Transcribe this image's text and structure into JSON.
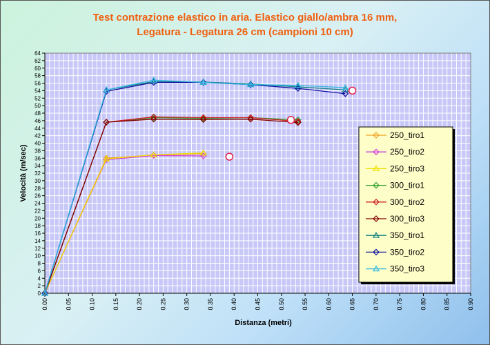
{
  "chart_data": {
    "type": "line",
    "title_line1": "Test contrazione elastico in aria. Elastico giallo/ambra 16 mm,",
    "title_line2": "Legatura - Legatura 26 cm (campioni 10 cm)",
    "xlabel": "Distanza (metri)",
    "ylabel": "Velocità (m/sec)",
    "xlim": [
      0,
      0.9
    ],
    "ylim": [
      0,
      64
    ],
    "x_ticks": [
      "0.00",
      "0.05",
      "0.10",
      "0.15",
      "0.20",
      "0.25",
      "0.30",
      "0.35",
      "0.40",
      "0.45",
      "0.50",
      "0.55",
      "0.60",
      "0.65",
      "0.70",
      "0.75",
      "0.80",
      "0.85",
      "0.90"
    ],
    "y_ticks": [
      0,
      2,
      4,
      6,
      8,
      10,
      12,
      14,
      16,
      18,
      20,
      22,
      24,
      26,
      28,
      30,
      32,
      34,
      36,
      38,
      40,
      42,
      44,
      46,
      48,
      50,
      52,
      54,
      56,
      58,
      60,
      62,
      64
    ],
    "grid": true,
    "legend_position": "right",
    "series": [
      {
        "name": "250_tiro1",
        "color": "#f0a020",
        "marker": "diamond",
        "x": [
          0,
          0.13,
          0.23,
          0.335
        ],
        "y": [
          0,
          36.0,
          36.8,
          37.2
        ]
      },
      {
        "name": "250_tiro2",
        "color": "#d040e0",
        "marker": "diamond",
        "x": [
          0,
          0.13,
          0.23,
          0.335
        ],
        "y": [
          0,
          35.6,
          36.7,
          36.6
        ]
      },
      {
        "name": "250_tiro3",
        "color": "#f0e000",
        "marker": "triangle",
        "x": [
          0,
          0.13,
          0.23,
          0.335
        ],
        "y": [
          0,
          35.8,
          36.9,
          37.4
        ]
      },
      {
        "name": "300_tiro1",
        "color": "#30a030",
        "marker": "diamond",
        "x": [
          0,
          0.13,
          0.23,
          0.335,
          0.435,
          0.535
        ],
        "y": [
          0,
          45.6,
          46.8,
          46.6,
          46.8,
          46.2
        ]
      },
      {
        "name": "300_tiro2",
        "color": "#d02020",
        "marker": "diamond",
        "x": [
          0,
          0.13,
          0.23,
          0.335,
          0.435,
          0.535
        ],
        "y": [
          0,
          45.6,
          47.0,
          46.8,
          46.8,
          45.8
        ]
      },
      {
        "name": "300_tiro3",
        "color": "#800000",
        "marker": "diamond",
        "x": [
          0,
          0.13,
          0.23,
          0.335,
          0.435,
          0.535
        ],
        "y": [
          0,
          45.6,
          46.4,
          46.3,
          46.4,
          45.5
        ]
      },
      {
        "name": "350_tiro1",
        "color": "#108080",
        "marker": "triangle",
        "x": [
          0,
          0.13,
          0.23,
          0.335,
          0.435,
          0.535,
          0.635
        ],
        "y": [
          0,
          54.2,
          56.4,
          56.3,
          55.8,
          55.0,
          54.2
        ]
      },
      {
        "name": "350_tiro2",
        "color": "#1010a0",
        "marker": "diamond",
        "x": [
          0,
          0.13,
          0.23,
          0.335,
          0.435,
          0.535,
          0.635
        ],
        "y": [
          0,
          53.8,
          56.2,
          56.2,
          55.6,
          54.6,
          53.2
        ]
      },
      {
        "name": "350_tiro3",
        "color": "#30b8e0",
        "marker": "triangle",
        "x": [
          0,
          0.13,
          0.23,
          0.335,
          0.435,
          0.535,
          0.635
        ],
        "y": [
          0,
          54.2,
          56.8,
          56.2,
          55.6,
          55.4,
          54.8
        ]
      }
    ],
    "circle_markers": {
      "color": "#e0204a",
      "x": [
        0.39,
        0.52,
        0.65
      ],
      "y": [
        36.4,
        46.2,
        54.0
      ]
    },
    "colors": {
      "plot_background": "#c8c8f8",
      "grid": "#ffffff",
      "title": "#f06010",
      "legend_background": "#fefec8"
    }
  }
}
